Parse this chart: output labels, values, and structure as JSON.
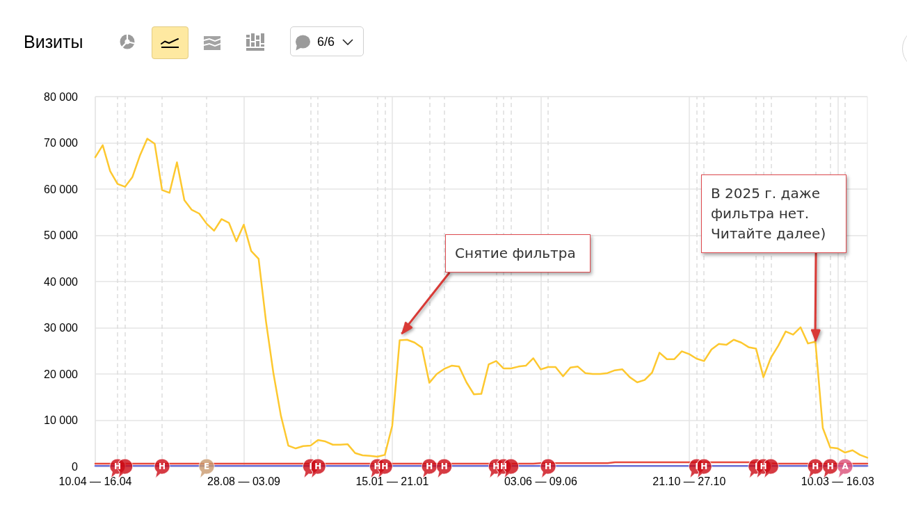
{
  "chart_data": {
    "type": "line",
    "title": "Визиты",
    "x": [
      "2023-04-10",
      "2023-04-17",
      "2023-04-24",
      "2023-05-01",
      "2023-05-08",
      "2023-05-15",
      "2023-05-22",
      "2023-05-29",
      "2023-06-05",
      "2023-06-12",
      "2023-06-19",
      "2023-06-26",
      "2023-07-03",
      "2023-07-10",
      "2023-07-17",
      "2023-07-24",
      "2023-07-31",
      "2023-08-07",
      "2023-08-14",
      "2023-08-21",
      "2023-08-28",
      "2023-09-04",
      "2023-09-11",
      "2023-09-18",
      "2023-09-25",
      "2023-10-02",
      "2023-10-09",
      "2023-10-16",
      "2023-10-23",
      "2023-10-30",
      "2023-11-06",
      "2023-11-13",
      "2023-11-20",
      "2023-11-27",
      "2023-12-04",
      "2023-12-11",
      "2023-12-18",
      "2023-12-25",
      "2024-01-01",
      "2024-01-08",
      "2024-01-15",
      "2024-01-22",
      "2024-01-29",
      "2024-02-05",
      "2024-02-12",
      "2024-02-19",
      "2024-02-26",
      "2024-03-04",
      "2024-03-11",
      "2024-03-18",
      "2024-03-25",
      "2024-04-01",
      "2024-04-08",
      "2024-04-15",
      "2024-04-22",
      "2024-04-29",
      "2024-05-06",
      "2024-05-13",
      "2024-05-20",
      "2024-05-27",
      "2024-06-03",
      "2024-06-10",
      "2024-06-17",
      "2024-06-24",
      "2024-07-01",
      "2024-07-08",
      "2024-07-15",
      "2024-07-22",
      "2024-07-29",
      "2024-08-05",
      "2024-08-12",
      "2024-08-19",
      "2024-08-26",
      "2024-09-02",
      "2024-09-09",
      "2024-09-16",
      "2024-09-23",
      "2024-09-30",
      "2024-10-07",
      "2024-10-14",
      "2024-10-21",
      "2024-10-28",
      "2024-11-04",
      "2024-11-11",
      "2024-11-18",
      "2024-11-25",
      "2024-12-02",
      "2024-12-09",
      "2024-12-16",
      "2024-12-23",
      "2024-12-30",
      "2025-01-06",
      "2025-01-13",
      "2025-01-20",
      "2025-01-27",
      "2025-02-03",
      "2025-02-10",
      "2025-02-17",
      "2025-02-24",
      "2025-03-03",
      "2025-03-10",
      "2025-03-17",
      "2025-03-24",
      "2025-03-31",
      "2025-04-07"
    ],
    "series": [
      {
        "color": "#e84a3c",
        "values": [
          600,
          600,
          600,
          null,
          null,
          600,
          600,
          600,
          600,
          null,
          600,
          600,
          600,
          600,
          600,
          null,
          600,
          600,
          600,
          600,
          600,
          600,
          600,
          600,
          600,
          600,
          600,
          600,
          600,
          null,
          null,
          600,
          600,
          600,
          600,
          600,
          600,
          600,
          null,
          null,
          600,
          600,
          600,
          600,
          600,
          null,
          null,
          null,
          600,
          600,
          600,
          600,
          600,
          600,
          null,
          null,
          null,
          600,
          600,
          600,
          700,
          null,
          700,
          700,
          700,
          700,
          700,
          700,
          700,
          700,
          900,
          900,
          900,
          900,
          900,
          900,
          900,
          900,
          900,
          900,
          900,
          null,
          null,
          900,
          900,
          900,
          900,
          900,
          900,
          null,
          null,
          null,
          600,
          600,
          600,
          600,
          600,
          null,
          null,
          null,
          null,
          null,
          600,
          600,
          600
        ]
      },
      {
        "color": "#6b70d8",
        "values": [
          100,
          100,
          100,
          null,
          null,
          100,
          100,
          100,
          100,
          null,
          100,
          100,
          100,
          100,
          100,
          null,
          100,
          100,
          100,
          100,
          100,
          100,
          100,
          100,
          100,
          100,
          100,
          100,
          100,
          null,
          null,
          100,
          100,
          100,
          100,
          100,
          100,
          100,
          null,
          null,
          100,
          100,
          100,
          100,
          100,
          null,
          null,
          null,
          100,
          100,
          100,
          100,
          100,
          100,
          null,
          null,
          null,
          100,
          100,
          100,
          100,
          null,
          100,
          100,
          100,
          100,
          100,
          100,
          100,
          100,
          100,
          100,
          100,
          100,
          100,
          100,
          100,
          100,
          100,
          100,
          100,
          null,
          null,
          100,
          100,
          100,
          100,
          100,
          100,
          null,
          null,
          null,
          100,
          100,
          100,
          100,
          100,
          null,
          null,
          null,
          null,
          null,
          100,
          100,
          100
        ]
      },
      {
        "color": "#fdc82f",
        "values": [
          66900,
          69500,
          63900,
          61100,
          60500,
          62600,
          67200,
          70900,
          69800,
          59800,
          59200,
          65800,
          57600,
          55500,
          54700,
          52500,
          51000,
          53500,
          52700,
          48700,
          52300,
          46600,
          44900,
          31300,
          20100,
          11000,
          4500,
          3900,
          4400,
          4500,
          5700,
          5400,
          4700,
          4700,
          4800,
          2900,
          2400,
          2300,
          2100,
          2500,
          8800,
          27300,
          27400,
          26800,
          25700,
          18100,
          20000,
          21100,
          21800,
          21600,
          18200,
          15600,
          15700,
          22100,
          22800,
          21200,
          21200,
          21600,
          21800,
          23400,
          21000,
          21500,
          21500,
          19500,
          21400,
          21600,
          20200,
          20000,
          20000,
          20200,
          20800,
          21000,
          19300,
          18200,
          18700,
          20300,
          24600,
          23200,
          23200,
          24900,
          24300,
          23300,
          22800,
          25300,
          26500,
          26300,
          27400,
          26800,
          25800,
          25500,
          19300,
          23500,
          26100,
          29200,
          28500,
          30100,
          26600,
          27000,
          8300,
          4100,
          3900,
          3000,
          3500,
          2500,
          1900
        ]
      },
      {
        "type": "scatter",
        "x": [
          "2023-05-01",
          "2023-05-08",
          "2023-06-12",
          "2023-07-24",
          "2023-10-30",
          "2023-11-06",
          "2024-01-01",
          "2024-01-08",
          "2024-02-19",
          "2024-03-04",
          "2024-04-22",
          "2024-04-29",
          "2024-05-06",
          "2024-06-10",
          "2024-10-28",
          "2024-11-04",
          "2024-12-23",
          "2024-12-30",
          "2025-01-06",
          "2025-02-17",
          "2025-03-03",
          "2025-03-17"
        ],
        "values": [
          0,
          0,
          0,
          0,
          0,
          0,
          0,
          0,
          0,
          0,
          0,
          0,
          0,
          0,
          0,
          0,
          0,
          0,
          0,
          0,
          0,
          0
        ],
        "colors": [
          "#cc0a14",
          "#cc0a14",
          "#cc0a14",
          "#c99a6e",
          "#cc0a14",
          "#cc0a14",
          "#cc0a14",
          "#cc0a14",
          "#cc0a14",
          "#cc0a14",
          "#cc0a14",
          "#cc0a14",
          "#cc0a14",
          "#cc0a14",
          "#cc0a14",
          "#cc0a14",
          "#cc0a14",
          "#cc0a14",
          "#cc0a14",
          "#cc0a14",
          "#cc0a14",
          "#db4f78"
        ]
      }
    ],
    "xlim": [
      "2023-04-10",
      "2025-04-07"
    ],
    "xticks": [
      {
        "value": "2023-04-10",
        "label": "10.04 — 16.04"
      },
      {
        "value": "2023-08-28",
        "label": "28.08 — 03.09"
      },
      {
        "value": "2024-01-15",
        "label": "15.01 — 21.01"
      },
      {
        "value": "2024-06-03",
        "label": "03.06 — 09.06"
      },
      {
        "value": "2024-10-21",
        "label": "21.10 — 27.10"
      },
      {
        "value": "2025-03-10",
        "label": "10.03 — 16.03"
      }
    ],
    "ylim": [
      0,
      80000
    ],
    "yticks": [
      0,
      {
        "value": 10000,
        "label": "10 000"
      },
      {
        "value": 20000,
        "label": "20 000"
      },
      {
        "value": 30000,
        "label": "30 000"
      },
      {
        "value": 40000,
        "label": "40 000"
      },
      {
        "value": 50000,
        "label": "50 000"
      },
      {
        "value": 60000,
        "label": "60 000"
      },
      {
        "value": 70000,
        "label": "70 000"
      },
      {
        "value": 80000,
        "label": "80 000"
      }
    ],
    "grid": true,
    "ref_lines": [
      {
        "axis": "x",
        "value": "2023-05-01",
        "label": "H",
        "color": "#dddddd",
        "line_style": "dashed"
      },
      {
        "axis": "x",
        "value": "2023-05-08",
        "color": "#dddddd",
        "line_style": "dashed"
      },
      {
        "axis": "x",
        "value": "2023-06-12",
        "label": "H",
        "color": "#dddddd",
        "line_style": "dashed"
      },
      {
        "axis": "x",
        "value": "2023-07-24",
        "label": "E",
        "color": "#dddddd",
        "line_style": "dashed"
      },
      {
        "axis": "x",
        "value": "2023-10-30",
        "label": "I",
        "color": "#dddddd",
        "line_style": "dashed"
      },
      {
        "axis": "x",
        "value": "2023-11-06",
        "label": "H",
        "color": "#dddddd",
        "line_style": "dashed"
      },
      {
        "axis": "x",
        "value": "2024-01-01",
        "label": "H",
        "color": "#dddddd",
        "line_style": "dashed"
      },
      {
        "axis": "x",
        "value": "2024-01-08",
        "label": "H",
        "color": "#dddddd",
        "line_style": "dashed"
      },
      {
        "axis": "x",
        "value": "2024-02-19",
        "label": "H",
        "color": "#dddddd",
        "line_style": "dashed"
      },
      {
        "axis": "x",
        "value": "2024-03-04",
        "label": "H",
        "color": "#dddddd",
        "line_style": "dashed"
      },
      {
        "axis": "x",
        "value": "2024-04-22",
        "label": "H",
        "color": "#dddddd",
        "line_style": "dashed"
      },
      {
        "axis": "x",
        "value": "2024-04-29",
        "label": "H",
        "color": "#dddddd",
        "line_style": "dashed"
      },
      {
        "axis": "x",
        "value": "2024-05-06",
        "color": "#dddddd",
        "line_style": "dashed"
      },
      {
        "axis": "x",
        "value": "2024-06-10",
        "label": "H",
        "color": "#dddddd",
        "line_style": "dashed"
      },
      {
        "axis": "x",
        "value": "2024-10-28",
        "label": "I",
        "color": "#dddddd",
        "line_style": "dashed"
      },
      {
        "axis": "x",
        "value": "2024-11-04",
        "label": "H",
        "color": "#dddddd",
        "line_style": "dashed"
      },
      {
        "axis": "x",
        "value": "2024-12-23",
        "label": "I",
        "color": "#dddddd",
        "line_style": "dashed"
      },
      {
        "axis": "x",
        "value": "2024-12-30",
        "label": "H",
        "color": "#dddddd",
        "line_style": "dashed"
      },
      {
        "axis": "x",
        "value": "2025-01-06",
        "color": "#dddddd",
        "line_style": "dashed"
      },
      {
        "axis": "x",
        "value": "2025-02-17",
        "label": "H",
        "color": "#dddddd",
        "line_style": "dashed"
      },
      {
        "axis": "x",
        "value": "2025-03-03",
        "label": "H",
        "color": "#dddddd",
        "line_style": "dashed"
      },
      {
        "axis": "x",
        "value": "2025-03-17",
        "label": "A",
        "color": "#dddddd",
        "line_style": "dashed"
      }
    ],
    "annotations": [
      "6/6",
      "Снятие фильтра",
      "В 2025 г. даже фильтра нет. Читайте далее)"
    ]
  }
}
